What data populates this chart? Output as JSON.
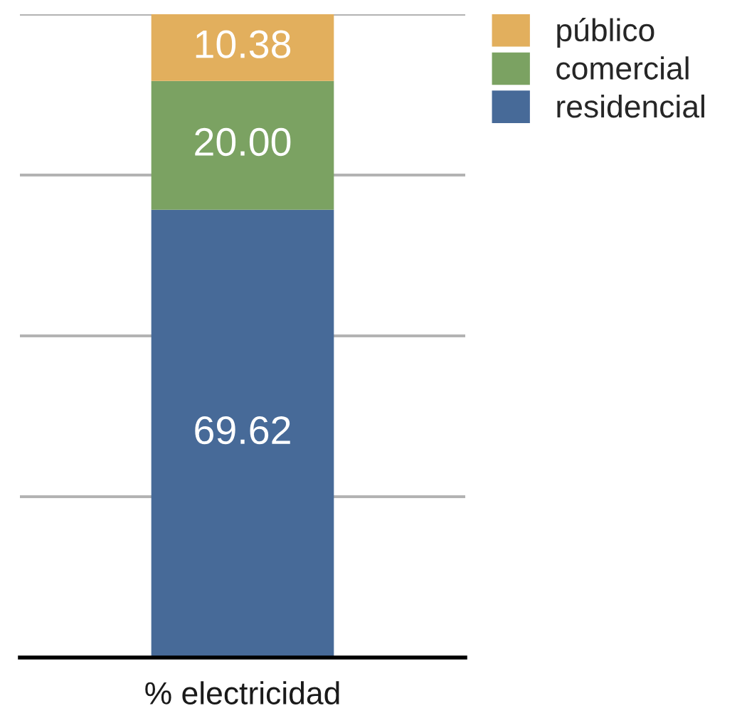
{
  "chart_data": {
    "type": "bar",
    "stacked": true,
    "categories": [
      "% electricidad"
    ],
    "series": [
      {
        "name": "residencial",
        "color": "#476a98",
        "values": [
          69.62
        ],
        "value_labels": [
          "69.62"
        ]
      },
      {
        "name": "comercial",
        "color": "#7ba262",
        "values": [
          20.0
        ],
        "value_labels": [
          "20.00"
        ]
      },
      {
        "name": "público",
        "color": "#e2af5d",
        "values": [
          10.38
        ],
        "value_labels": [
          "10.38"
        ]
      }
    ],
    "ylim": [
      0,
      100
    ],
    "yticks": [
      {
        "value": 0,
        "label": null
      },
      {
        "value": 25,
        "label": null
      },
      {
        "value": 50,
        "label": null
      },
      {
        "value": 75,
        "label": null
      },
      {
        "value": 100,
        "label": null
      }
    ],
    "grid": "y",
    "legend": "top right",
    "tick_labels": "x"
  }
}
